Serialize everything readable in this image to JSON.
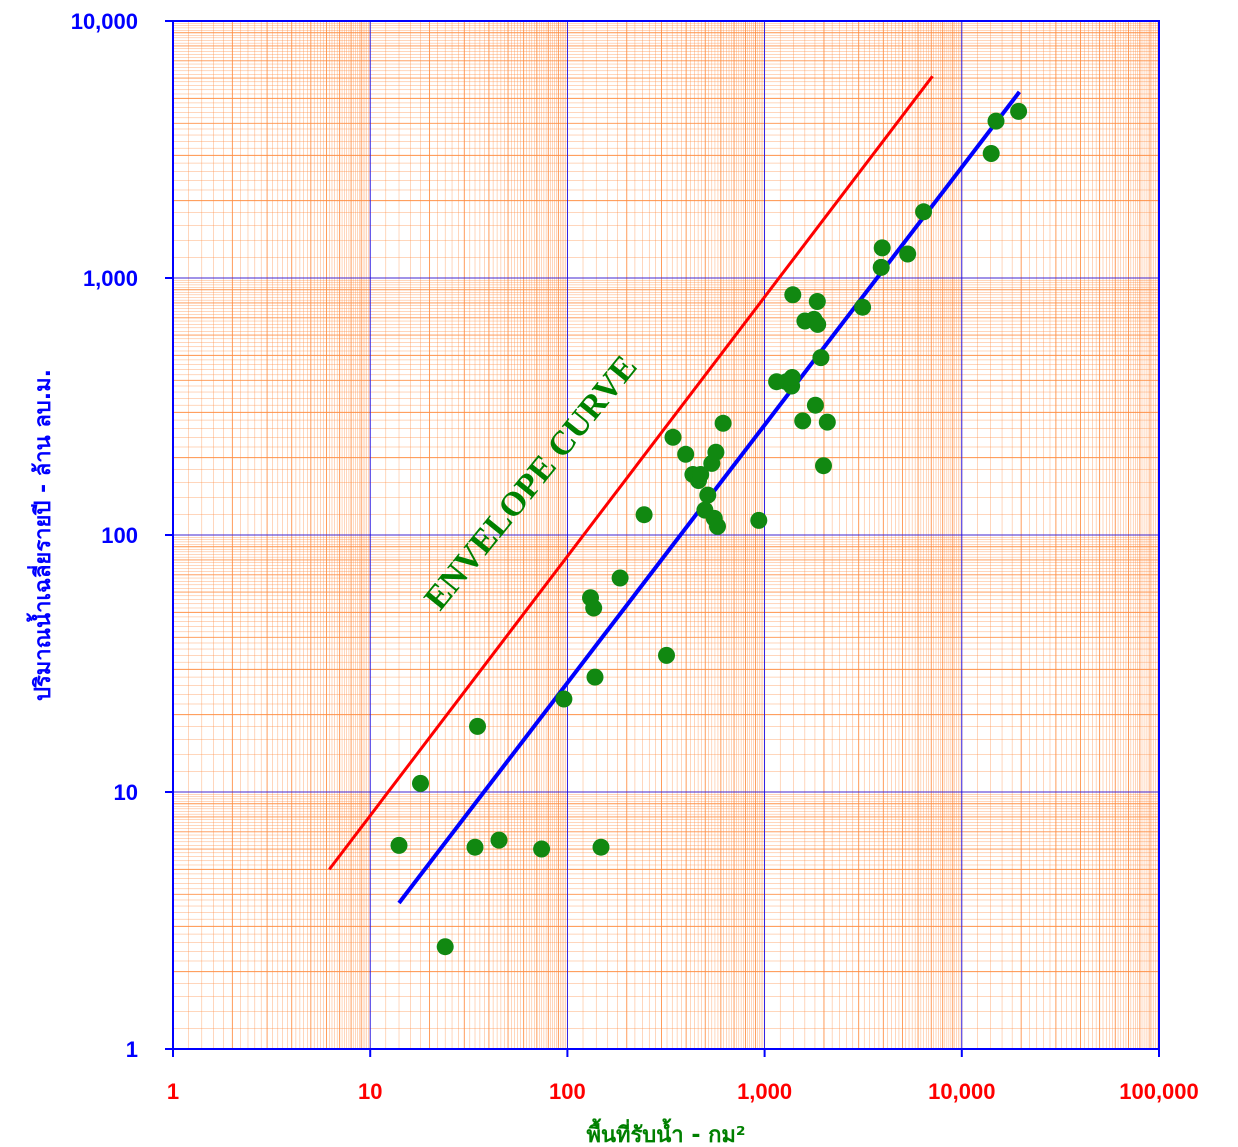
{
  "chart_data": {
    "type": "scatter",
    "scale": "log-log",
    "xlabel": "พื้นที่รับน้ำ - กม²",
    "ylabel": "ปริมาณน้ำเฉลี่ยรายปี - ล้าน ลบ.ม.",
    "xlim": [
      1,
      100000
    ],
    "ylim": [
      1,
      10000
    ],
    "xticks": [
      1,
      10,
      100,
      1000,
      10000,
      100000
    ],
    "xtick_labels": [
      "1",
      "10",
      "100",
      "1,000",
      "10,000",
      "100,000"
    ],
    "yticks": [
      1,
      10,
      100,
      1000,
      10000
    ],
    "ytick_labels": [
      "1",
      "10",
      "100",
      "1,000",
      "10,000"
    ],
    "grid": true,
    "colors": {
      "major_grid": "#0000ff",
      "minor_grid": "#ff8c40",
      "points": "#118811",
      "envelope": "#ff0000",
      "regression": "#0000ff",
      "annotation": "#008000"
    },
    "annotation": "ENVELOPE CURVE",
    "points": [
      {
        "x": 14,
        "y": 6.2
      },
      {
        "x": 18,
        "y": 10.8
      },
      {
        "x": 24,
        "y": 2.5
      },
      {
        "x": 34,
        "y": 6.1
      },
      {
        "x": 35,
        "y": 18
      },
      {
        "x": 45,
        "y": 6.5
      },
      {
        "x": 74,
        "y": 6
      },
      {
        "x": 96,
        "y": 23
      },
      {
        "x": 131,
        "y": 57
      },
      {
        "x": 136,
        "y": 52
      },
      {
        "x": 138,
        "y": 28
      },
      {
        "x": 148,
        "y": 6.1
      },
      {
        "x": 185,
        "y": 68
      },
      {
        "x": 245,
        "y": 120
      },
      {
        "x": 318,
        "y": 34
      },
      {
        "x": 343,
        "y": 240
      },
      {
        "x": 398,
        "y": 206
      },
      {
        "x": 433,
        "y": 172
      },
      {
        "x": 462,
        "y": 163
      },
      {
        "x": 474,
        "y": 172
      },
      {
        "x": 498,
        "y": 125
      },
      {
        "x": 515,
        "y": 143
      },
      {
        "x": 540,
        "y": 190
      },
      {
        "x": 556,
        "y": 116
      },
      {
        "x": 566,
        "y": 210
      },
      {
        "x": 577,
        "y": 108
      },
      {
        "x": 616,
        "y": 272
      },
      {
        "x": 935,
        "y": 114
      },
      {
        "x": 1150,
        "y": 395
      },
      {
        "x": 1290,
        "y": 395
      },
      {
        "x": 1370,
        "y": 380
      },
      {
        "x": 1380,
        "y": 410
      },
      {
        "x": 1390,
        "y": 860
      },
      {
        "x": 1560,
        "y": 278
      },
      {
        "x": 1600,
        "y": 680
      },
      {
        "x": 1780,
        "y": 690
      },
      {
        "x": 1810,
        "y": 320
      },
      {
        "x": 1850,
        "y": 810
      },
      {
        "x": 1860,
        "y": 660
      },
      {
        "x": 1930,
        "y": 490
      },
      {
        "x": 1990,
        "y": 186
      },
      {
        "x": 2080,
        "y": 275
      },
      {
        "x": 3140,
        "y": 770
      },
      {
        "x": 3900,
        "y": 1100
      },
      {
        "x": 3950,
        "y": 1310
      },
      {
        "x": 5320,
        "y": 1240
      },
      {
        "x": 6400,
        "y": 1810
      },
      {
        "x": 14100,
        "y": 3050
      },
      {
        "x": 14900,
        "y": 4080
      },
      {
        "x": 19400,
        "y": 4450
      }
    ],
    "series": [
      {
        "type": "line",
        "x": [
          6.2,
          7100
        ],
        "y": [
          5,
          6100
        ]
      },
      {
        "type": "line",
        "x": [
          14,
          19600
        ],
        "y": [
          3.7,
          5300
        ]
      }
    ]
  }
}
